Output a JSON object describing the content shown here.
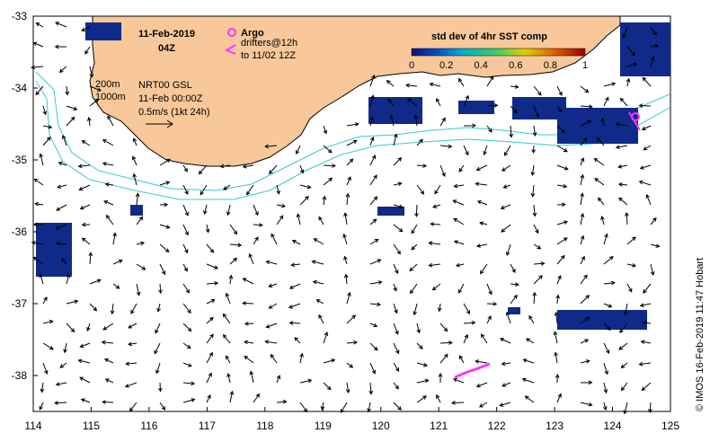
{
  "header": {
    "date": "11-Feb-2019",
    "time": "04Z"
  },
  "legend": {
    "argo_label": "Argo",
    "drifters_label_1": "drifters@12h",
    "drifters_label_2": "to 11/02 12Z",
    "argo_color": "#ff33ff",
    "drifter_color": "#ff33ff"
  },
  "colorbar": {
    "title": "std dev of 4hr SST comp",
    "ticks": [
      "0",
      "0.2",
      "0.4",
      "0.6",
      "0.8",
      "1"
    ],
    "colors": [
      "#101080",
      "#0050d0",
      "#00b0d0",
      "#40d060",
      "#e0d000",
      "#e06000",
      "#a00000"
    ]
  },
  "depth_legend": {
    "contour_1": "200m",
    "contour_2": "1000m",
    "contour_color": "#33cccc"
  },
  "current_info": {
    "source": "NRT00 GSL",
    "timestamp": "11-Feb 00:00Z",
    "scale": "0.5m/s (1kt 24h)"
  },
  "axes": {
    "lon_ticks": [
      "114",
      "115",
      "116",
      "117",
      "118",
      "119",
      "120",
      "121",
      "122",
      "123",
      "124",
      "125"
    ],
    "lat_ticks": [
      "-33",
      "-34",
      "-35",
      "-36",
      "-37",
      "-38"
    ]
  },
  "credit": "© IMOS 16-Feb-2019 11:47 Hobart",
  "colors": {
    "land": "#f8c89a",
    "coastline": "#000000",
    "sst_patch": "#102a8a",
    "arrow": "#000000"
  }
}
